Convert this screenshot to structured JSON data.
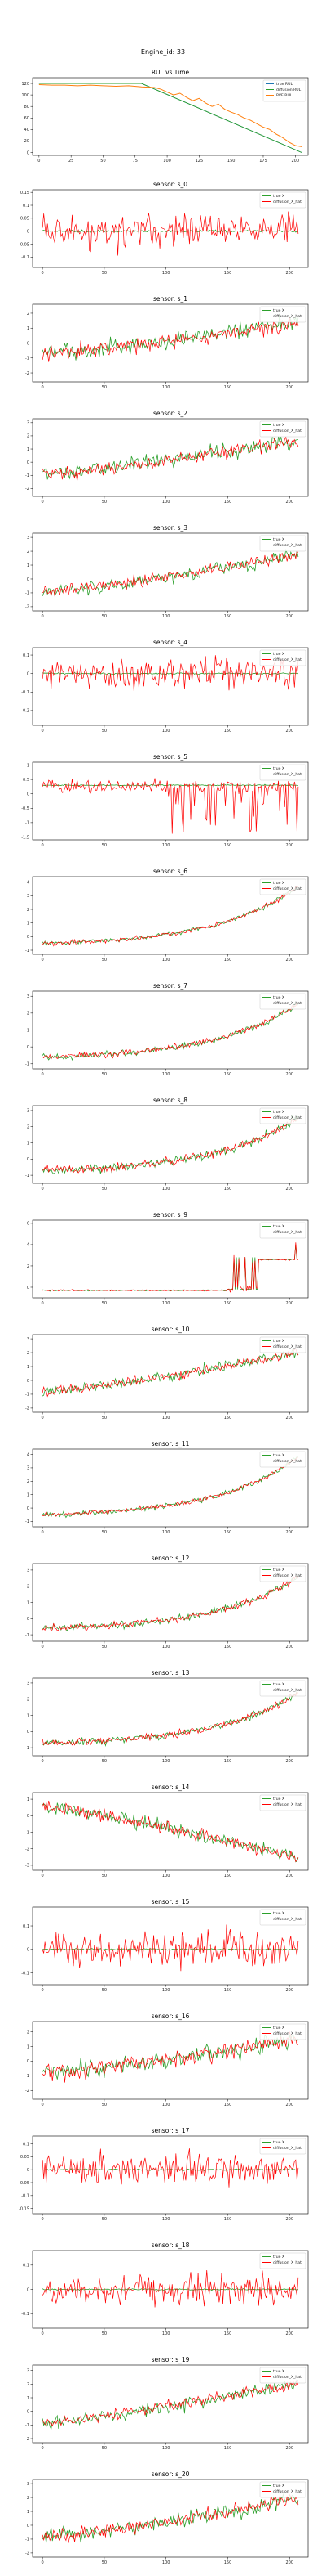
{
  "figure": {
    "suptitle": "Engine_id: 33"
  },
  "chart_data": [
    {
      "type": "line",
      "title": "RUL vs Time",
      "xlabel": "",
      "ylabel": "",
      "xlim": [
        -5,
        210
      ],
      "ylim": [
        -5,
        130
      ],
      "xticks": [
        0,
        25,
        50,
        75,
        100,
        125,
        150,
        175,
        200
      ],
      "yticks": [
        0,
        20,
        40,
        60,
        80,
        100,
        120
      ],
      "legend": "top-right",
      "series": [
        {
          "name": "true RUL",
          "color": "#1f77b4",
          "x": [
            0,
            80,
            205
          ],
          "y": [
            120,
            120,
            0
          ]
        },
        {
          "name": "diffusion RUL",
          "color": "#2ca02c",
          "x": [
            0,
            80,
            205
          ],
          "y": [
            120,
            120,
            0
          ]
        },
        {
          "name": "PVE RUL",
          "color": "#ff7f0e",
          "x": [
            0,
            10,
            20,
            30,
            40,
            50,
            60,
            70,
            80,
            90,
            95,
            100,
            105,
            110,
            115,
            120,
            125,
            130,
            135,
            140,
            145,
            150,
            155,
            160,
            165,
            170,
            175,
            180,
            185,
            190,
            195,
            200,
            205
          ],
          "y": [
            118,
            117,
            117,
            116,
            117,
            116,
            115,
            116,
            114,
            113,
            110,
            105,
            100,
            103,
            96,
            90,
            94,
            86,
            80,
            84,
            75,
            70,
            66,
            60,
            56,
            50,
            44,
            40,
            32,
            26,
            18,
            12,
            10
          ]
        }
      ]
    },
    {
      "type": "line",
      "title": "sensor: s_0",
      "xlim": [
        -8,
        215
      ],
      "ylim": [
        -0.14,
        0.16
      ],
      "xticks": [
        0,
        50,
        100,
        150,
        200
      ],
      "yticks": [
        -0.1,
        -0.05,
        0.0,
        0.05,
        0.1,
        0.15
      ],
      "legend": "top-right",
      "n": 208,
      "trend": "flat",
      "base": 0.0,
      "noise": 0.07,
      "series": [
        {
          "name": "true X",
          "color": "#2ca02c"
        },
        {
          "name": "diffusion_X_hat",
          "color": "#ff0000"
        }
      ]
    },
    {
      "type": "line",
      "title": "sensor: s_1",
      "xlim": [
        -8,
        215
      ],
      "ylim": [
        -2.6,
        2.6
      ],
      "xticks": [
        0,
        50,
        100,
        150,
        200
      ],
      "yticks": [
        -2,
        -1,
        0,
        1,
        2
      ],
      "legend": "top-right",
      "n": 208,
      "trend": "rise",
      "base": -0.7,
      "end": 1.4,
      "noise": 0.55,
      "series": [
        {
          "name": "true X",
          "color": "#2ca02c"
        },
        {
          "name": "diffusion_X_hat",
          "color": "#ff0000"
        }
      ]
    },
    {
      "type": "line",
      "title": "sensor: s_2",
      "xlim": [
        -8,
        215
      ],
      "ylim": [
        -2.6,
        3.3
      ],
      "xticks": [
        0,
        50,
        100,
        150,
        200
      ],
      "yticks": [
        -2,
        -1,
        0,
        1,
        2,
        3
      ],
      "legend": "top-right",
      "n": 208,
      "trend": "rise",
      "base": -0.9,
      "end": 1.7,
      "noise": 0.55,
      "series": [
        {
          "name": "true X",
          "color": "#2ca02c"
        },
        {
          "name": "diffusion_X_hat",
          "color": "#ff0000"
        }
      ]
    },
    {
      "type": "line",
      "title": "sensor: s_3",
      "xlim": [
        -8,
        215
      ],
      "ylim": [
        -2.3,
        3.3
      ],
      "xticks": [
        0,
        50,
        100,
        150,
        200
      ],
      "yticks": [
        -2,
        -1,
        0,
        1,
        2,
        3
      ],
      "legend": "top-right",
      "n": 208,
      "trend": "rise",
      "base": -0.9,
      "end": 1.8,
      "noise": 0.45,
      "series": [
        {
          "name": "true X",
          "color": "#2ca02c"
        },
        {
          "name": "diffusion_X_hat",
          "color": "#ff0000"
        }
      ]
    },
    {
      "type": "line",
      "title": "sensor: s_4",
      "xlim": [
        -8,
        215
      ],
      "ylim": [
        -0.28,
        0.14
      ],
      "xticks": [
        0,
        50,
        100,
        150,
        200
      ],
      "yticks": [
        -0.2,
        -0.1,
        0.0,
        0.1
      ],
      "legend": "top-right",
      "n": 208,
      "trend": "flat",
      "base": 0.0,
      "noise": 0.08,
      "series": [
        {
          "name": "true X",
          "color": "#2ca02c"
        },
        {
          "name": "diffusion_X_hat",
          "color": "#ff0000"
        }
      ]
    },
    {
      "type": "line",
      "title": "sensor: s_5",
      "xlim": [
        -8,
        215
      ],
      "ylim": [
        -1.6,
        1.1
      ],
      "xticks": [
        0,
        50,
        100,
        150,
        200
      ],
      "yticks": [
        -1.5,
        -1.0,
        -0.5,
        0.0,
        0.5,
        1.0
      ],
      "legend": "top-right",
      "n": 208,
      "trend": "drops",
      "base": 0.3,
      "noise": 0.25,
      "series": [
        {
          "name": "true X",
          "color": "#2ca02c"
        },
        {
          "name": "diffusion_X_hat",
          "color": "#ff0000"
        }
      ]
    },
    {
      "type": "line",
      "title": "sensor: s_6",
      "xlim": [
        -8,
        215
      ],
      "ylim": [
        -1.3,
        4.4
      ],
      "xticks": [
        0,
        50,
        100,
        150,
        200
      ],
      "yticks": [
        -1,
        0,
        1,
        2,
        3,
        4
      ],
      "legend": "top-right",
      "n": 208,
      "trend": "exp",
      "base": -0.5,
      "end": 3.7,
      "noise": 0.18,
      "series": [
        {
          "name": "true X",
          "color": "#2ca02c"
        },
        {
          "name": "diffusion_X_hat",
          "color": "#ff0000"
        }
      ]
    },
    {
      "type": "line",
      "title": "sensor: s_7",
      "xlim": [
        -8,
        215
      ],
      "ylim": [
        -1.3,
        3.3
      ],
      "xticks": [
        0,
        50,
        100,
        150,
        200
      ],
      "yticks": [
        -1,
        0,
        1,
        2,
        3
      ],
      "legend": "top-right",
      "n": 208,
      "trend": "exp",
      "base": -0.6,
      "end": 2.6,
      "noise": 0.18,
      "series": [
        {
          "name": "true X",
          "color": "#2ca02c"
        },
        {
          "name": "diffusion_X_hat",
          "color": "#ff0000"
        }
      ]
    },
    {
      "type": "line",
      "title": "sensor: s_8",
      "xlim": [
        -8,
        215
      ],
      "ylim": [
        -1.5,
        3.3
      ],
      "xticks": [
        0,
        50,
        100,
        150,
        200
      ],
      "yticks": [
        -1,
        0,
        1,
        2,
        3
      ],
      "legend": "top-right",
      "n": 208,
      "trend": "exp",
      "base": -0.7,
      "end": 2.6,
      "noise": 0.25,
      "series": [
        {
          "name": "true X",
          "color": "#2ca02c"
        },
        {
          "name": "diffusion_X_hat",
          "color": "#ff0000"
        }
      ]
    },
    {
      "type": "line",
      "title": "sensor: s_9",
      "xlim": [
        -8,
        215
      ],
      "ylim": [
        -1.0,
        6.3
      ],
      "xticks": [
        0,
        50,
        100,
        150,
        200
      ],
      "yticks": [
        0,
        2,
        4,
        6
      ],
      "legend": "top-right",
      "n": 208,
      "trend": "step",
      "base": -0.3,
      "end": 2.6,
      "noise": 0.05,
      "series": [
        {
          "name": "true X",
          "color": "#2ca02c"
        },
        {
          "name": "diffusion_X_hat",
          "color": "#ff0000"
        }
      ]
    },
    {
      "type": "line",
      "title": "sensor: s_10",
      "xlim": [
        -8,
        215
      ],
      "ylim": [
        -2.3,
        3.3
      ],
      "xticks": [
        0,
        50,
        100,
        150,
        200
      ],
      "yticks": [
        -2,
        -1,
        0,
        1,
        2,
        3
      ],
      "legend": "top-right",
      "n": 208,
      "trend": "rise",
      "base": -0.8,
      "end": 2.0,
      "noise": 0.4,
      "series": [
        {
          "name": "true X",
          "color": "#2ca02c"
        },
        {
          "name": "diffusion_X_hat",
          "color": "#ff0000"
        }
      ]
    },
    {
      "type": "line",
      "title": "sensor: s_11",
      "xlim": [
        -8,
        215
      ],
      "ylim": [
        -1.4,
        4.4
      ],
      "xticks": [
        0,
        50,
        100,
        150,
        200
      ],
      "yticks": [
        -1,
        0,
        1,
        2,
        3,
        4
      ],
      "legend": "top-right",
      "n": 208,
      "trend": "exp",
      "base": -0.5,
      "end": 3.8,
      "noise": 0.18,
      "series": [
        {
          "name": "true X",
          "color": "#2ca02c"
        },
        {
          "name": "diffusion_X_hat",
          "color": "#ff0000"
        }
      ]
    },
    {
      "type": "line",
      "title": "sensor: s_12",
      "xlim": [
        -8,
        215
      ],
      "ylim": [
        -1.4,
        3.4
      ],
      "xticks": [
        0,
        50,
        100,
        150,
        200
      ],
      "yticks": [
        -1,
        0,
        1,
        2,
        3
      ],
      "legend": "top-right",
      "n": 208,
      "trend": "exp",
      "base": -0.6,
      "end": 2.6,
      "noise": 0.22,
      "series": [
        {
          "name": "true X",
          "color": "#2ca02c"
        },
        {
          "name": "diffusion_X_hat",
          "color": "#ff0000"
        }
      ]
    },
    {
      "type": "line",
      "title": "sensor: s_13",
      "xlim": [
        -8,
        215
      ],
      "ylim": [
        -1.5,
        3.3
      ],
      "xticks": [
        0,
        50,
        100,
        150,
        200
      ],
      "yticks": [
        -1,
        0,
        1,
        2,
        3
      ],
      "legend": "top-right",
      "n": 208,
      "trend": "exp",
      "base": -0.7,
      "end": 2.4,
      "noise": 0.22,
      "series": [
        {
          "name": "true X",
          "color": "#2ca02c"
        },
        {
          "name": "diffusion_X_hat",
          "color": "#ff0000"
        }
      ]
    },
    {
      "type": "line",
      "title": "sensor: s_14",
      "xlim": [
        -8,
        215
      ],
      "ylim": [
        -3.3,
        1.4
      ],
      "xticks": [
        0,
        50,
        100,
        150,
        200
      ],
      "yticks": [
        -3,
        -2,
        -1,
        0,
        1
      ],
      "legend": "top-right",
      "n": 208,
      "trend": "fall",
      "base": 0.5,
      "end": -2.6,
      "noise": 0.4,
      "series": [
        {
          "name": "true X",
          "color": "#2ca02c"
        },
        {
          "name": "diffusion_X_hat",
          "color": "#ff0000"
        }
      ]
    },
    {
      "type": "line",
      "title": "sensor: s_15",
      "xlim": [
        -8,
        215
      ],
      "ylim": [
        -0.15,
        0.18
      ],
      "xticks": [
        0,
        50,
        100,
        150,
        200
      ],
      "yticks": [
        -0.1,
        0.0,
        0.1
      ],
      "legend": "top-right",
      "n": 208,
      "trend": "flat",
      "base": 0.0,
      "noise": 0.07,
      "series": [
        {
          "name": "true X",
          "color": "#2ca02c"
        },
        {
          "name": "diffusion_X_hat",
          "color": "#ff0000"
        }
      ]
    },
    {
      "type": "line",
      "title": "sensor: s_16",
      "xlim": [
        -8,
        215
      ],
      "ylim": [
        -2.6,
        2.7
      ],
      "xticks": [
        0,
        50,
        100,
        150,
        200
      ],
      "yticks": [
        -2,
        -1,
        0,
        1,
        2
      ],
      "legend": "top-right",
      "n": 208,
      "trend": "rise",
      "base": -0.8,
      "end": 1.5,
      "noise": 0.55,
      "series": [
        {
          "name": "true X",
          "color": "#2ca02c"
        },
        {
          "name": "diffusion_X_hat",
          "color": "#ff0000"
        }
      ]
    },
    {
      "type": "line",
      "title": "sensor: s_17",
      "xlim": [
        -8,
        215
      ],
      "ylim": [
        -0.17,
        0.13
      ],
      "xticks": [
        0,
        50,
        100,
        150,
        200
      ],
      "yticks": [
        -0.15,
        -0.1,
        -0.05,
        0.0,
        0.05,
        0.1
      ],
      "legend": "top-right",
      "n": 208,
      "trend": "flat",
      "base": 0.0,
      "noise": 0.06,
      "series": [
        {
          "name": "true X",
          "color": "#2ca02c"
        },
        {
          "name": "diffusion_X_hat",
          "color": "#ff0000"
        }
      ]
    },
    {
      "type": "line",
      "title": "sensor: s_18",
      "xlim": [
        -8,
        215
      ],
      "ylim": [
        -0.16,
        0.16
      ],
      "xticks": [
        0,
        50,
        100,
        150,
        200
      ],
      "yticks": [
        -0.1,
        0.0,
        0.1
      ],
      "legend": "top-right",
      "n": 208,
      "trend": "flat",
      "base": 0.0,
      "noise": 0.06,
      "series": [
        {
          "name": "true X",
          "color": "#2ca02c"
        },
        {
          "name": "diffusion_X_hat",
          "color": "#ff0000"
        }
      ]
    },
    {
      "type": "line",
      "title": "sensor: s_19",
      "xlim": [
        -8,
        215
      ],
      "ylim": [
        -2.3,
        3.4
      ],
      "xticks": [
        0,
        50,
        100,
        150,
        200
      ],
      "yticks": [
        -2,
        -1,
        0,
        1,
        2,
        3
      ],
      "legend": "top-right",
      "n": 208,
      "trend": "rise",
      "base": -0.8,
      "end": 2.1,
      "noise": 0.45,
      "series": [
        {
          "name": "true X",
          "color": "#2ca02c"
        },
        {
          "name": "diffusion_X_hat",
          "color": "#ff0000"
        }
      ]
    },
    {
      "type": "line",
      "title": "sensor: s_20",
      "xlim": [
        -8,
        215
      ],
      "ylim": [
        -2.3,
        3.3
      ],
      "xticks": [
        0,
        50,
        100,
        150,
        200
      ],
      "yticks": [
        -2,
        -1,
        0,
        1,
        2,
        3
      ],
      "legend": "top-right",
      "n": 208,
      "trend": "rise",
      "base": -0.8,
      "end": 1.9,
      "noise": 0.5,
      "series": [
        {
          "name": "true X",
          "color": "#2ca02c"
        },
        {
          "name": "diffusion_X_hat",
          "color": "#ff0000"
        }
      ]
    }
  ]
}
